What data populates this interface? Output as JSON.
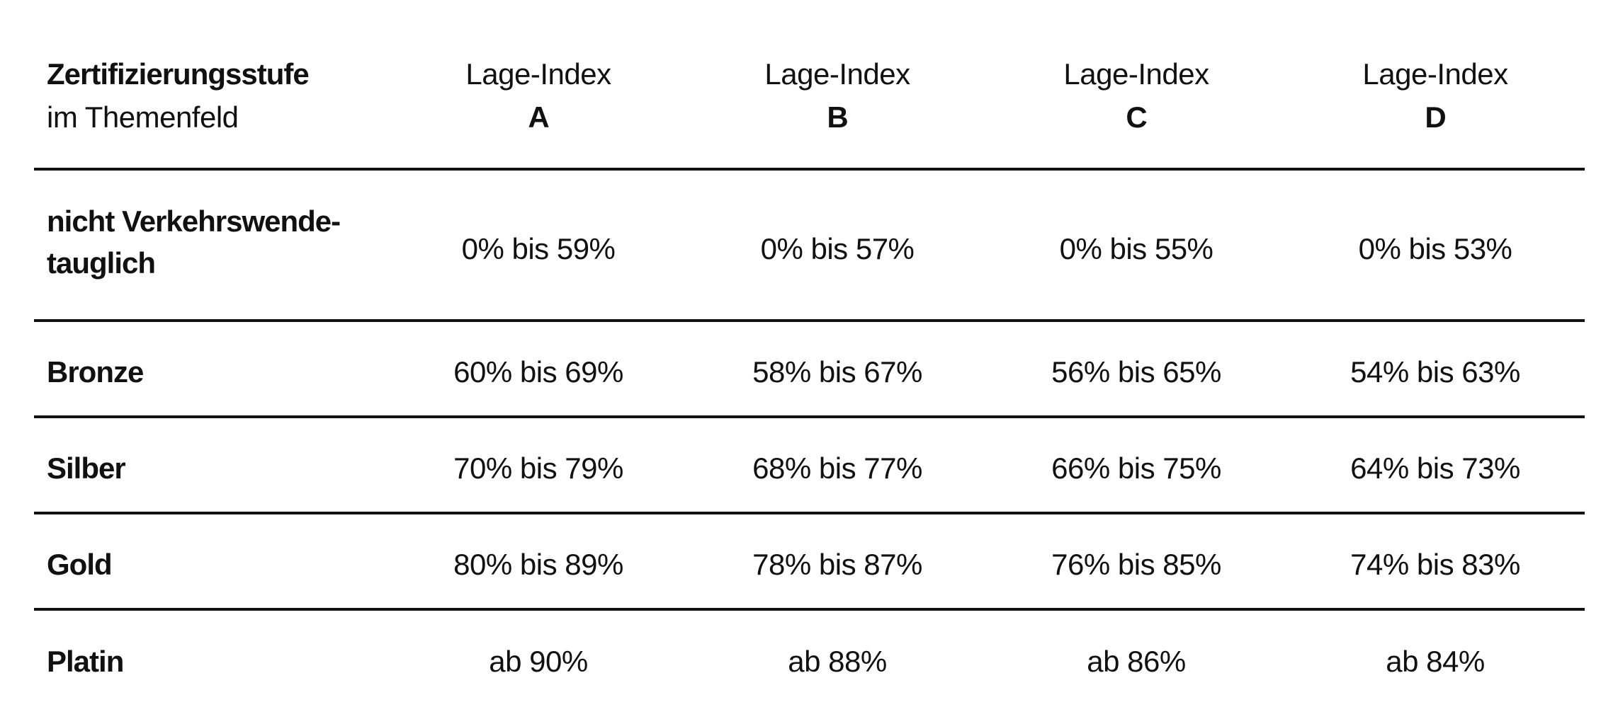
{
  "header": {
    "title": "Zertifizierungsstufe",
    "subtitle": "im Themenfeld",
    "columns": [
      {
        "label": "Lage-Index",
        "letter": "A"
      },
      {
        "label": "Lage-Index",
        "letter": "B"
      },
      {
        "label": "Lage-Index",
        "letter": "C"
      },
      {
        "label": "Lage-Index",
        "letter": "D"
      }
    ]
  },
  "rows": [
    {
      "label": [
        "nicht Verkehrswende-",
        "tauglich"
      ],
      "cells": [
        "0% bis 59%",
        "0% bis 57%",
        "0% bis 55%",
        "0% bis 53%"
      ]
    },
    {
      "label": [
        "Bronze"
      ],
      "cells": [
        "60% bis 69%",
        "58% bis 67%",
        "56% bis 65%",
        "54% bis 63%"
      ]
    },
    {
      "label": [
        "Silber"
      ],
      "cells": [
        "70% bis 79%",
        "68% bis 77%",
        "66% bis 75%",
        "64% bis 73%"
      ]
    },
    {
      "label": [
        "Gold"
      ],
      "cells": [
        "80% bis 89%",
        "78% bis 87%",
        "76% bis 85%",
        "74% bis 83%"
      ]
    },
    {
      "label": [
        "Platin"
      ],
      "cells": [
        "ab 90%",
        "ab 88%",
        "ab 86%",
        "ab 84%"
      ]
    }
  ]
}
